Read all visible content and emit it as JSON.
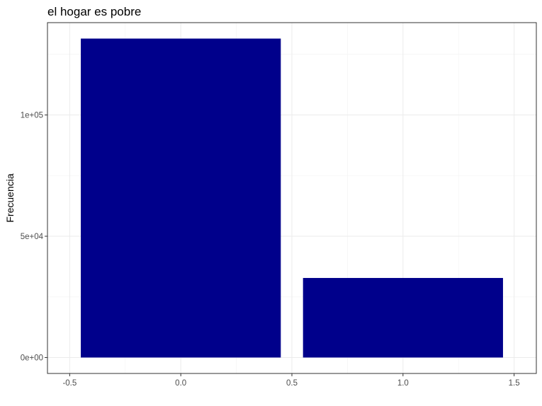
{
  "chart_data": {
    "type": "bar",
    "title": "el hogar es pobre",
    "xlabel": "",
    "ylabel": "Frecuencia",
    "x": [
      0,
      1
    ],
    "values": [
      131500,
      32800
    ],
    "bar_width": 0.9,
    "xlim": [
      -0.5,
      1.5
    ],
    "ylim": [
      0,
      131500
    ],
    "x_ticks": [
      -0.5,
      0.0,
      0.5,
      1.0,
      1.5
    ],
    "x_tick_labels": [
      "-0.5",
      "0.0",
      "0.5",
      "1.0",
      "1.5"
    ],
    "y_ticks": [
      0,
      50000,
      100000
    ],
    "y_tick_labels": [
      "0e+00",
      "5e+04",
      "1e+05"
    ],
    "grid": true,
    "colors": {
      "bar": "#00008B",
      "grid_major": "#ebebeb",
      "grid_minor": "#f5f5f5",
      "panel_border": "#333333"
    }
  }
}
